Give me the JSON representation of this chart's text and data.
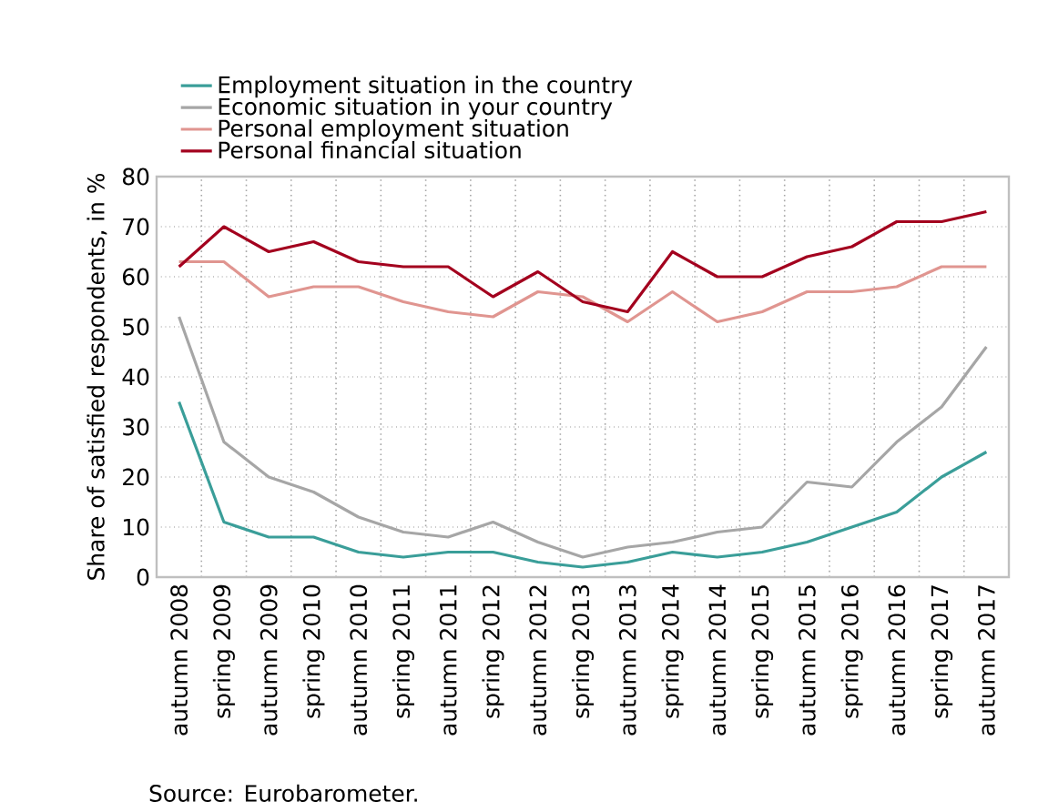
{
  "chart_data": {
    "type": "line",
    "ylabel": "Share of satisfied respondents, in %",
    "categories": [
      "autumn 2008",
      "spring 2009",
      "autumn 2009",
      "spring 2010",
      "autumn 2010",
      "spring 2011",
      "autumn 2011",
      "spring 2012",
      "autumn 2012",
      "spring 2013",
      "autumn 2013",
      "spring 2014",
      "autumn 2014",
      "spring 2015",
      "autumn 2015",
      "spring 2016",
      "autumn 2016",
      "spring 2017",
      "autumn 2017"
    ],
    "series": [
      {
        "name": "Employment situation in the country",
        "color": "#3a9e99",
        "values": [
          35,
          11,
          8,
          8,
          5,
          4,
          5,
          5,
          3,
          2,
          3,
          5,
          4,
          5,
          7,
          10,
          13,
          20,
          25
        ]
      },
      {
        "name": "Economic situation in your country",
        "color": "#a6a6a6",
        "values": [
          52,
          27,
          20,
          17,
          12,
          9,
          8,
          11,
          7,
          4,
          6,
          7,
          9,
          10,
          19,
          18,
          27,
          34,
          46
        ]
      },
      {
        "name": "Personal employment situation",
        "color": "#e09590",
        "values": [
          63,
          63,
          56,
          58,
          58,
          55,
          53,
          52,
          57,
          56,
          51,
          57,
          51,
          53,
          57,
          57,
          58,
          62,
          62
        ]
      },
      {
        "name": "Personal financial situation",
        "color": "#a3001e",
        "values": [
          62,
          70,
          65,
          67,
          63,
          62,
          62,
          56,
          61,
          55,
          53,
          65,
          60,
          60,
          64,
          66,
          71,
          71,
          73
        ]
      }
    ],
    "ylim": [
      0,
      80
    ],
    "yticks": [
      0,
      10,
      20,
      30,
      40,
      50,
      60,
      70,
      80
    ],
    "grid": true,
    "legend": "top",
    "marker": "none",
    "line_style": "solid",
    "annotations": [
      "Source: Eurobarometer."
    ]
  }
}
